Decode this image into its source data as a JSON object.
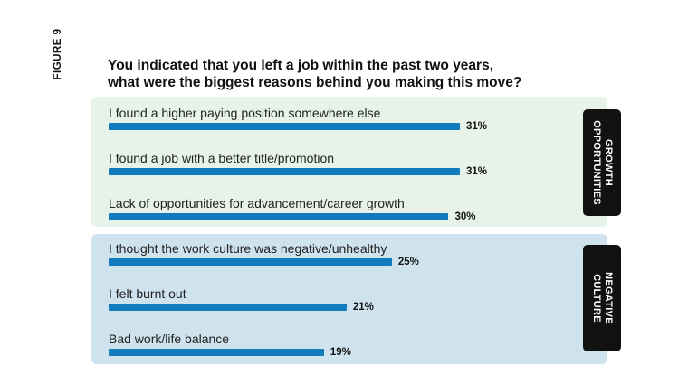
{
  "figure_label": "FIGURE 9",
  "chart_data": {
    "type": "bar",
    "orientation": "horizontal",
    "title": "You indicated that you left a job within the past two years,",
    "title_line2": "what were the biggest reasons behind you making this move?",
    "xlim": [
      0,
      100
    ],
    "groups": [
      {
        "label": "GROWTH OPPORTUNITIES",
        "label_lines": [
          "GROWTH",
          "OPPORTUNITIES"
        ],
        "items": [
          {
            "label": "I found a higher paying position somewhere else",
            "value": 31,
            "value_label": "31%"
          },
          {
            "label": "I found a job with a better title/promotion",
            "value": 31,
            "value_label": "31%"
          },
          {
            "label": "Lack of opportunities for advancement/career growth",
            "value": 30,
            "value_label": "30%"
          }
        ]
      },
      {
        "label": "NEGATIVE CULTURE",
        "label_lines": [
          "NEGATIVE",
          "CULTURE"
        ],
        "items": [
          {
            "label": "I thought the work culture was negative/unhealthy",
            "value": 25,
            "value_label": "25%"
          },
          {
            "label": "I felt burnt out",
            "value": 21,
            "value_label": "21%"
          },
          {
            "label": "Bad work/life balance",
            "value": 19,
            "value_label": "19%"
          }
        ]
      }
    ],
    "colors": {
      "bar": "#127bbd",
      "group1_bg": "#e7f3e9",
      "group2_bg": "#cfe3ee",
      "tag_bg": "#111111"
    }
  }
}
